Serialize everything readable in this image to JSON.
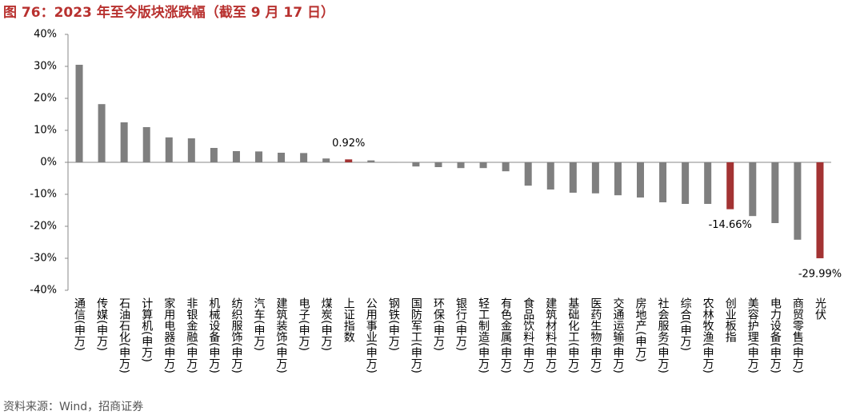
{
  "chart_data": {
    "type": "bar",
    "title": "图 76：2023 年至今版块涨跌幅（截至 9 月 17 日）",
    "source": "资料来源：Wind，招商证券",
    "categories": [
      "通信(申万)",
      "传媒(申万)",
      "石油石化(申万)",
      "计算机(申万)",
      "家用电器(申万)",
      "非银金融(申万)",
      "机械设备(申万)",
      "纺织服饰(申万)",
      "汽车(申万)",
      "建筑装饰(申万)",
      "电子(申万)",
      "煤炭(申万)",
      "上证指数",
      "公用事业(申万)",
      "钢铁(申万)",
      "国防军工(申万)",
      "环保(申万)",
      "银行(申万)",
      "轻工制造(申万)",
      "有色金属(申万)",
      "食品饮料(申万)",
      "建筑材料(申万)",
      "基础化工(申万)",
      "医药生物(申万)",
      "交通运输(申万)",
      "房地产(申万)",
      "社会服务(申万)",
      "综合(申万)",
      "农林牧渔(申万)",
      "创业板指",
      "美容护理(申万)",
      "电力设备(申万)",
      "商贸零售(申万)",
      "光伏"
    ],
    "values": [
      30.5,
      18.2,
      12.5,
      11,
      7.8,
      7.5,
      4.5,
      3.5,
      3.4,
      3.0,
      2.9,
      1.2,
      0.92,
      0.6,
      -0.1,
      -1.3,
      -1.5,
      -1.8,
      -1.8,
      -2.8,
      -7.3,
      -8.5,
      -9.5,
      -9.7,
      -10.3,
      -11,
      -12.5,
      -13,
      -13,
      -14.66,
      -16.8,
      -19,
      -24.2,
      -29.99
    ],
    "value_labels": [
      null,
      null,
      null,
      null,
      null,
      null,
      null,
      null,
      null,
      null,
      null,
      null,
      "0.92%",
      null,
      null,
      null,
      null,
      null,
      null,
      null,
      null,
      null,
      null,
      null,
      null,
      null,
      null,
      null,
      null,
      "-14.66%",
      null,
      null,
      null,
      "-29.99%"
    ],
    "colors": [
      "#7f7f7f",
      "#7f7f7f",
      "#7f7f7f",
      "#7f7f7f",
      "#7f7f7f",
      "#7f7f7f",
      "#7f7f7f",
      "#7f7f7f",
      "#7f7f7f",
      "#7f7f7f",
      "#7f7f7f",
      "#7f7f7f",
      "#a33333",
      "#7f7f7f",
      "#7f7f7f",
      "#7f7f7f",
      "#7f7f7f",
      "#7f7f7f",
      "#7f7f7f",
      "#7f7f7f",
      "#7f7f7f",
      "#7f7f7f",
      "#7f7f7f",
      "#7f7f7f",
      "#7f7f7f",
      "#7f7f7f",
      "#7f7f7f",
      "#7f7f7f",
      "#7f7f7f",
      "#a33333",
      "#7f7f7f",
      "#7f7f7f",
      "#7f7f7f",
      "#a33333"
    ],
    "ylim": [
      -40,
      40
    ],
    "yticks": [
      {
        "value": -40,
        "label": "-40%"
      },
      {
        "value": -30,
        "label": "-30%"
      },
      {
        "value": -20,
        "label": "-20%"
      },
      {
        "value": -10,
        "label": "-10%"
      },
      {
        "value": 0,
        "label": "0%"
      },
      {
        "value": 10,
        "label": "10%"
      },
      {
        "value": 20,
        "label": "20%"
      },
      {
        "value": 30,
        "label": "30%"
      },
      {
        "value": 40,
        "label": "40%"
      }
    ],
    "grid": false
  }
}
